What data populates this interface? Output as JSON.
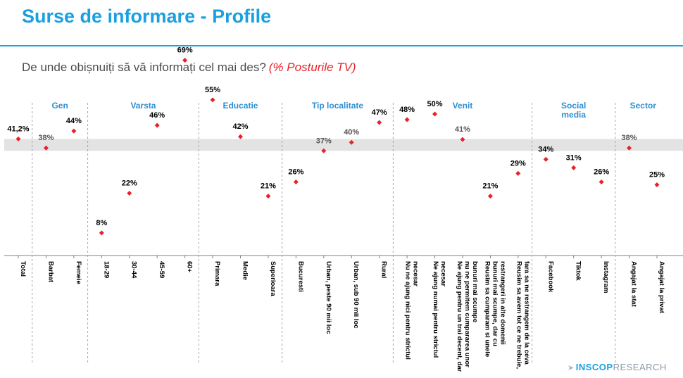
{
  "slide": {
    "title": "Surse de informare - Profile",
    "question": "De unde obișnuiți să vă informați cel mai des?",
    "question_note": "(% Posturile TV)",
    "logo_brand": "INSCOP",
    "logo_suffix": "RESEARCH"
  },
  "colors": {
    "accent": "#1aa0e0",
    "marker": "#e8212a",
    "band": "#e3e3e3",
    "text": "#000000",
    "group_label": "#2f8fd0"
  },
  "chart_data": {
    "type": "scatter",
    "title": "De unde obișnuiți să vă informați cel mai des? (% Posturile TV)",
    "ylim": [
      0,
      80
    ],
    "reference_band": [
      37,
      41.2
    ],
    "categories": [
      {
        "label": "Total",
        "value": 41.2,
        "value_label": "41,2%",
        "group": "Total"
      },
      {
        "label": "Barbat",
        "value": 38,
        "value_label": "38%",
        "group": "Gen"
      },
      {
        "label": "Femeie",
        "value": 44,
        "value_label": "44%",
        "group": "Gen"
      },
      {
        "label": "18-29",
        "value": 8,
        "value_label": "8%",
        "group": "Varsta"
      },
      {
        "label": "30-44",
        "value": 22,
        "value_label": "22%",
        "group": "Varsta"
      },
      {
        "label": "45-59",
        "value": 46,
        "value_label": "46%",
        "group": "Varsta"
      },
      {
        "label": "60+",
        "value": 69,
        "value_label": "69%",
        "group": "Varsta"
      },
      {
        "label": "Primara",
        "value": 55,
        "value_label": "55%",
        "group": "Educatie"
      },
      {
        "label": "Medie",
        "value": 42,
        "value_label": "42%",
        "group": "Educatie"
      },
      {
        "label": "Superioara",
        "value": 21,
        "value_label": "21%",
        "group": "Educatie"
      },
      {
        "label": "Bucuresti",
        "value": 26,
        "value_label": "26%",
        "group": "Tip localitate"
      },
      {
        "label": "Urban, peste 90 mii loc",
        "value": 37,
        "value_label": "37%",
        "group": "Tip localitate"
      },
      {
        "label": "Urban, sub 90 mii loc",
        "value": 40,
        "value_label": "40%",
        "group": "Tip localitate"
      },
      {
        "label": "Rural",
        "value": 47,
        "value_label": "47%",
        "group": "Tip localitate"
      },
      {
        "label": "Nu ne ajung nici pentru strictul necesar",
        "value": 48,
        "value_label": "48%",
        "group": "Venit"
      },
      {
        "label": "Ne ajung numai pentru strictul necesar",
        "value": 50,
        "value_label": "50%",
        "group": "Venit"
      },
      {
        "label": "Ne ajung pentru un trai decent, dar nu ne permitem cumpararea unor bunuri mai scumpe",
        "value": 41,
        "value_label": "41%",
        "group": "Venit"
      },
      {
        "label": "Reusim sa cumparam si unele bunuri mai scumpe, dar cu restrangeri in alte domenii",
        "value": 21,
        "value_label": "21%",
        "group": "Venit"
      },
      {
        "label": "Reusim sa avem tot ce ne trebuie, fara sa ne restrangem de la ceva",
        "value": 29,
        "value_label": "29%",
        "group": "Venit"
      },
      {
        "label": "Facebook",
        "value": 34,
        "value_label": "34%",
        "group": "Social media"
      },
      {
        "label": "Tiktok",
        "value": 31,
        "value_label": "31%",
        "group": "Social media"
      },
      {
        "label": "Instagram",
        "value": 26,
        "value_label": "26%",
        "group": "Social media"
      },
      {
        "label": "Angajat la stat",
        "value": 38,
        "value_label": "38%",
        "group": "Sector"
      },
      {
        "label": "Angajat la privat",
        "value": 25,
        "value_label": "25%",
        "group": "Sector"
      }
    ],
    "groups": [
      {
        "name": "Gen",
        "label_lines": [
          "Gen"
        ],
        "first": 1,
        "last": 2
      },
      {
        "name": "Varsta",
        "label_lines": [
          "Varsta"
        ],
        "first": 3,
        "last": 6
      },
      {
        "name": "Educatie",
        "label_lines": [
          "Educatie"
        ],
        "first": 7,
        "last": 9
      },
      {
        "name": "Tip localitate",
        "label_lines": [
          "Tip localitate"
        ],
        "first": 10,
        "last": 13
      },
      {
        "name": "Venit",
        "label_lines": [
          "Venit"
        ],
        "first": 14,
        "last": 18
      },
      {
        "name": "Social media",
        "label_lines": [
          "Social",
          "media"
        ],
        "first": 19,
        "last": 21
      },
      {
        "name": "Sector",
        "label_lines": [
          "Sector"
        ],
        "first": 22,
        "last": 23
      }
    ],
    "wrapped_labels": [
      [
        "Total"
      ],
      [
        "Barbat"
      ],
      [
        "Femeie"
      ],
      [
        "18-29"
      ],
      [
        "30-44"
      ],
      [
        "45-59"
      ],
      [
        "60+"
      ],
      [
        "Primara"
      ],
      [
        "Medie"
      ],
      [
        "Superioara"
      ],
      [
        "Bucuresti"
      ],
      [
        "Urban, peste 90 mii loc"
      ],
      [
        "Urban, sub 90 mii loc"
      ],
      [
        "Rural"
      ],
      [
        "Nu ne ajung nici pentru strictul",
        "necesar"
      ],
      [
        "Ne ajung numai pentru strictul",
        "necesar"
      ],
      [
        "Ne ajung pentru un trai decent, dar",
        "nu ne permitem cumpararea unor",
        "bunuri mai scumpe"
      ],
      [
        "Reusim sa cumparam si unele",
        "bunuri mai scumpe, dar cu",
        "restrangeri in alte domenii"
      ],
      [
        "Reusim sa avem tot ce ne trebuie,",
        "fara sa ne restrangem de la ceva"
      ],
      [
        "Facebook"
      ],
      [
        "Tiktok"
      ],
      [
        "Instagram"
      ],
      [
        "Angajat la stat"
      ],
      [
        "Angajat la privat"
      ]
    ]
  }
}
